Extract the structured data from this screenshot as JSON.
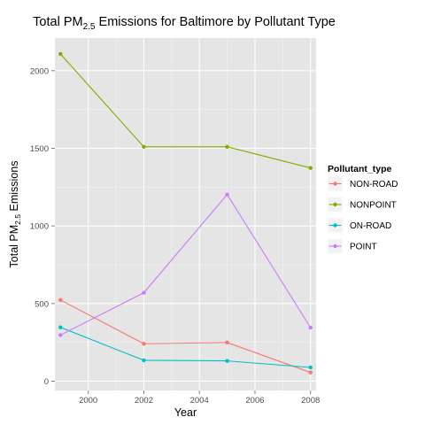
{
  "chart_data": {
    "type": "line",
    "title": {
      "pre": "Total PM",
      "sub": "2.5",
      "post": " Emissions for Baltimore by Pollutant Type"
    },
    "xlabel": "Year",
    "ylabel": {
      "pre": "Total PM",
      "sub": "2.5",
      "post": " Emissions"
    },
    "x": [
      1999,
      2002,
      2005,
      2008
    ],
    "xlim": [
      1998.8,
      2008.2
    ],
    "ylim": [
      -60,
      2210
    ],
    "xticks": [
      2000,
      2002,
      2004,
      2006,
      2008
    ],
    "yticks": [
      0,
      500,
      1000,
      1500,
      2000
    ],
    "xtick_labels": [
      "2000",
      "2002",
      "2004",
      "2006",
      "2008"
    ],
    "ytick_labels": [
      "0",
      "500",
      "1000",
      "1500",
      "2000"
    ],
    "grid": true,
    "legend": {
      "title": "Pollutant_type",
      "placement": "right"
    },
    "series": [
      {
        "name": "NON-ROAD",
        "color": "#F8766D",
        "values": [
          522.9,
          240.8,
          248.9,
          55.8
        ]
      },
      {
        "name": "NONPOINT",
        "color": "#7CAE00",
        "values": [
          2107.6,
          1509.5,
          1509.5,
          1373.2
        ]
      },
      {
        "name": "ON-ROAD",
        "color": "#00BFC4",
        "values": [
          346.8,
          134.3,
          130.4,
          88.3
        ]
      },
      {
        "name": "POINT",
        "color": "#C77CFF",
        "values": [
          296.8,
          569.3,
          1202.5,
          344.9
        ]
      }
    ]
  }
}
